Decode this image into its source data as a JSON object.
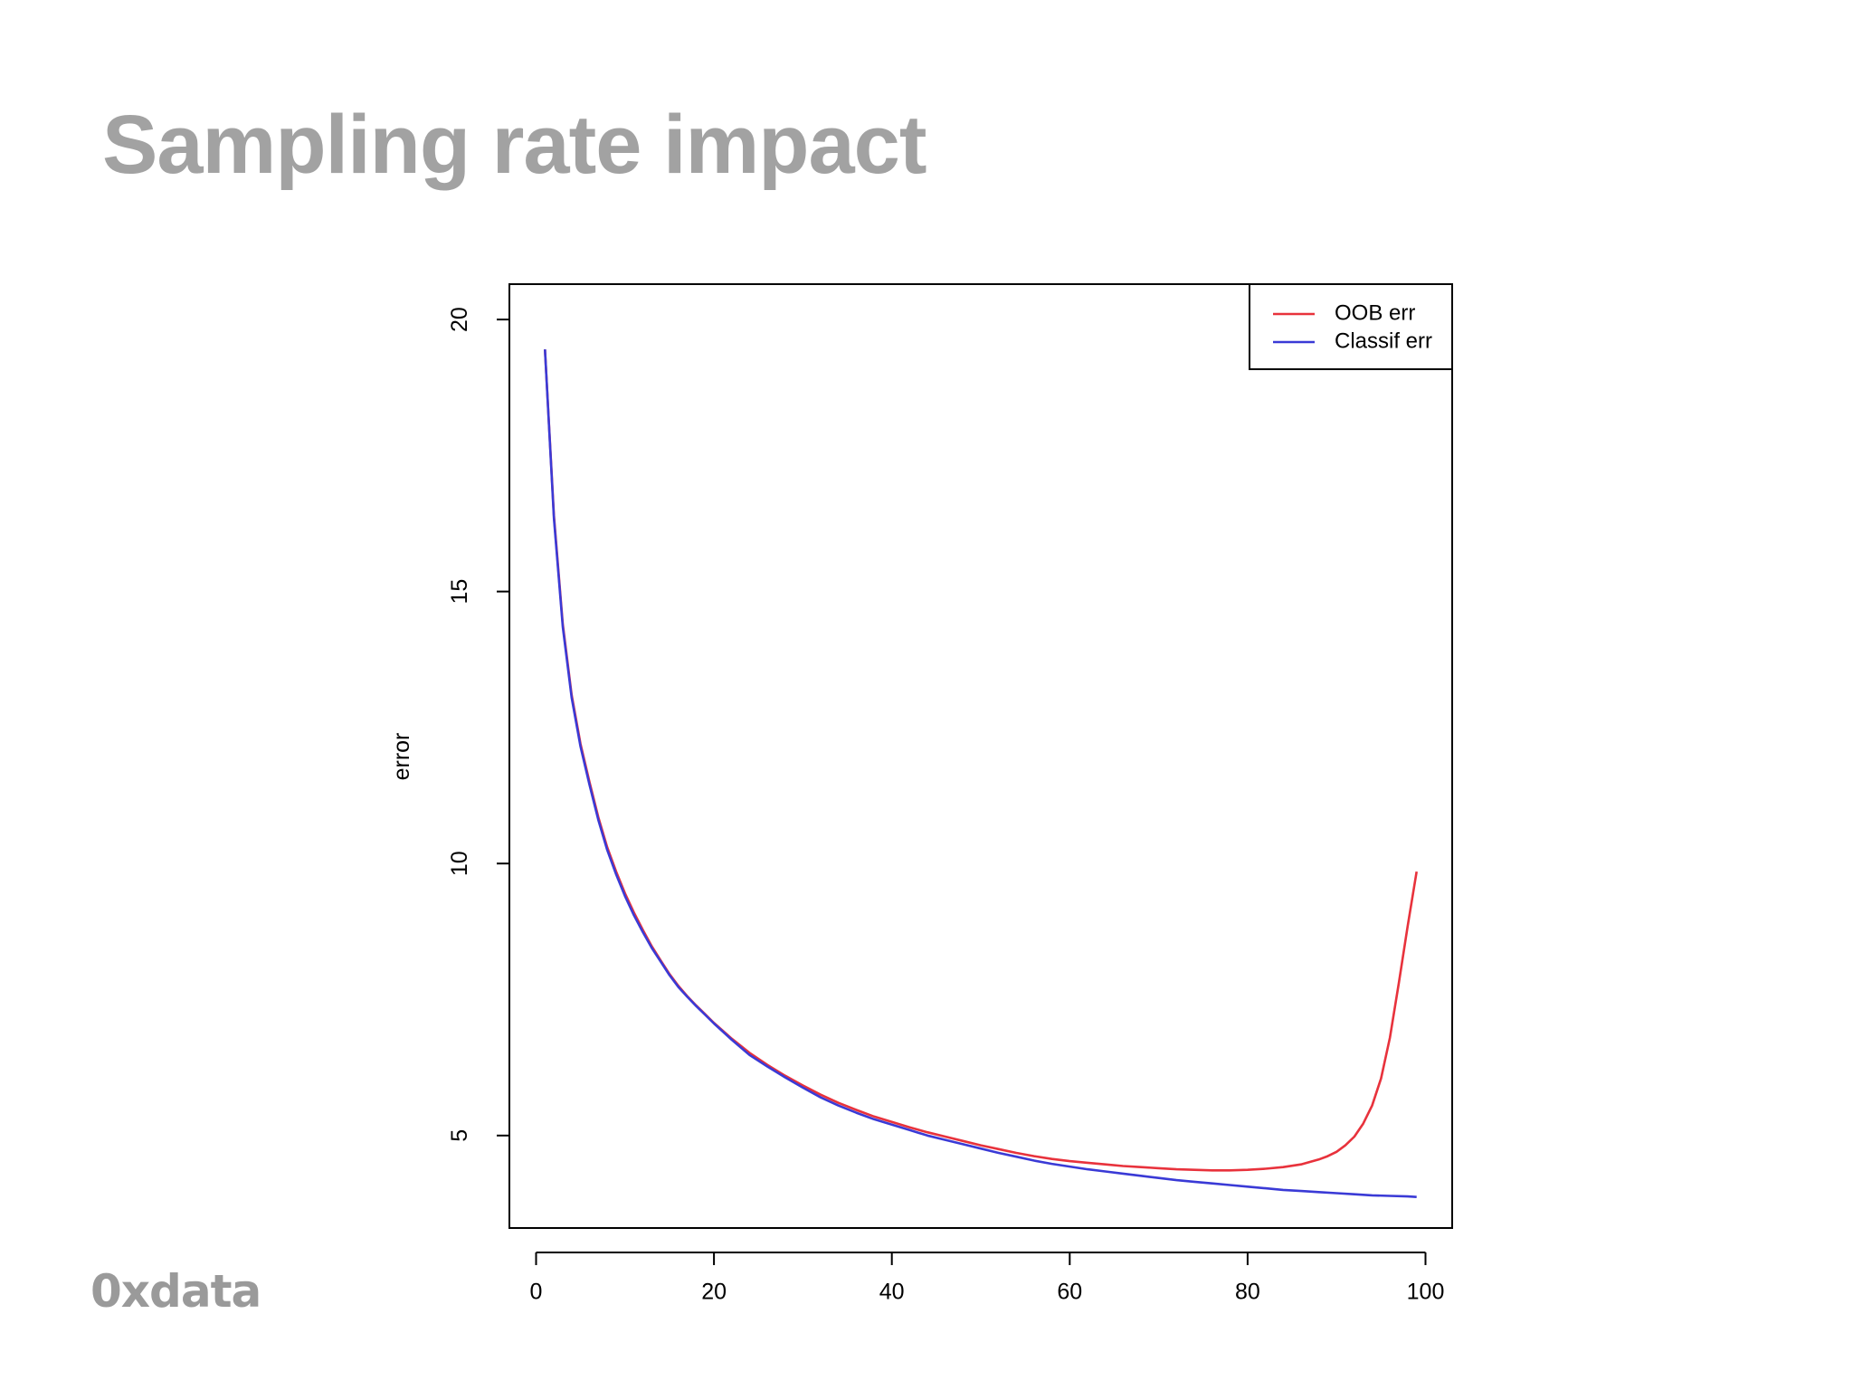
{
  "slide": {
    "title": "Sampling rate impact",
    "logo_text": "0xdata"
  },
  "chart_data": {
    "type": "line",
    "title": "",
    "xlabel": "",
    "ylabel": "error",
    "xlim": [
      -3,
      103
    ],
    "ylim": [
      3.3,
      20.65
    ],
    "xticks": [
      0,
      20,
      40,
      60,
      80,
      100
    ],
    "yticks": [
      5,
      10,
      15,
      20
    ],
    "grid": false,
    "legend": "top-right",
    "series": [
      {
        "name": "OOB err",
        "color": "#e8323c",
        "x": [
          1,
          2,
          3,
          4,
          5,
          6,
          7,
          8,
          9,
          10,
          11,
          12,
          13,
          14,
          15,
          16,
          17,
          18,
          19,
          20,
          22,
          24,
          26,
          28,
          30,
          32,
          34,
          36,
          38,
          40,
          42,
          44,
          46,
          48,
          50,
          52,
          54,
          56,
          58,
          60,
          62,
          64,
          66,
          68,
          70,
          72,
          74,
          76,
          78,
          80,
          82,
          84,
          86,
          88,
          89,
          90,
          91,
          92,
          93,
          94,
          95,
          96,
          97,
          98,
          99
        ],
        "y": [
          19.45,
          16.4,
          14.4,
          13.1,
          12.2,
          11.5,
          10.85,
          10.3,
          9.85,
          9.45,
          9.1,
          8.78,
          8.48,
          8.22,
          7.97,
          7.75,
          7.56,
          7.39,
          7.23,
          7.07,
          6.78,
          6.52,
          6.3,
          6.1,
          5.92,
          5.75,
          5.6,
          5.47,
          5.35,
          5.25,
          5.15,
          5.06,
          4.98,
          4.9,
          4.82,
          4.75,
          4.68,
          4.62,
          4.57,
          4.53,
          4.5,
          4.47,
          4.44,
          4.42,
          4.4,
          4.38,
          4.37,
          4.36,
          4.36,
          4.37,
          4.39,
          4.42,
          4.47,
          4.56,
          4.62,
          4.7,
          4.82,
          4.98,
          5.22,
          5.55,
          6.05,
          6.8,
          7.8,
          8.85,
          9.85
        ]
      },
      {
        "name": "Classif err",
        "color": "#3a3ad6",
        "x": [
          1,
          2,
          3,
          4,
          5,
          6,
          7,
          8,
          9,
          10,
          11,
          12,
          13,
          14,
          15,
          16,
          17,
          18,
          19,
          20,
          22,
          24,
          26,
          28,
          30,
          32,
          34,
          36,
          38,
          40,
          42,
          44,
          46,
          48,
          50,
          52,
          54,
          56,
          58,
          60,
          62,
          64,
          66,
          68,
          70,
          72,
          74,
          76,
          78,
          80,
          82,
          84,
          86,
          88,
          90,
          92,
          94,
          96,
          98,
          99
        ],
        "y": [
          19.45,
          16.35,
          14.35,
          13.05,
          12.15,
          11.45,
          10.8,
          10.25,
          9.8,
          9.4,
          9.05,
          8.74,
          8.45,
          8.2,
          7.95,
          7.73,
          7.55,
          7.38,
          7.22,
          7.06,
          6.76,
          6.48,
          6.27,
          6.07,
          5.88,
          5.7,
          5.55,
          5.42,
          5.3,
          5.2,
          5.1,
          5.0,
          4.92,
          4.84,
          4.76,
          4.68,
          4.61,
          4.54,
          4.48,
          4.43,
          4.38,
          4.34,
          4.3,
          4.26,
          4.22,
          4.18,
          4.15,
          4.12,
          4.09,
          4.06,
          4.03,
          4.0,
          3.98,
          3.96,
          3.94,
          3.92,
          3.9,
          3.89,
          3.88,
          3.87
        ]
      }
    ]
  }
}
